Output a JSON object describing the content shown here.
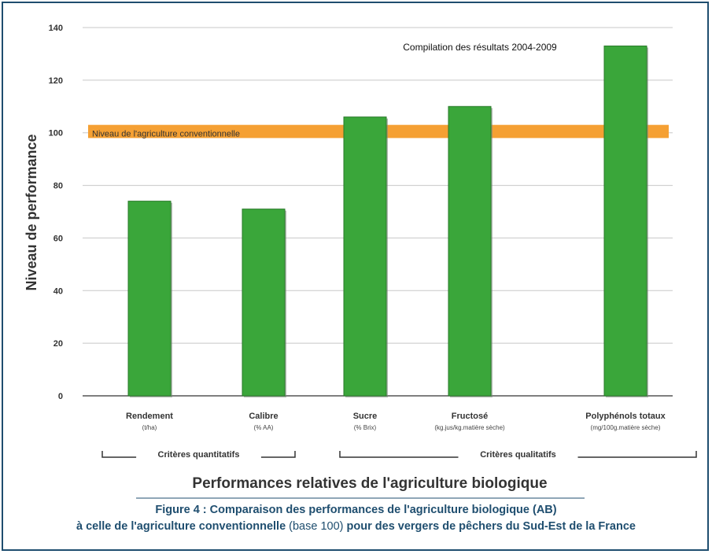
{
  "chart_data": {
    "type": "bar",
    "annotation": "Compilation des résultats 2004-2009",
    "ylabel": "Niveau de performance",
    "xlabel": "Performances relatives de l'agriculture biologique",
    "ylim": [
      0,
      140
    ],
    "yticks": [
      0,
      20,
      40,
      60,
      80,
      100,
      120,
      140
    ],
    "grid": true,
    "bar_color": "#3aa63a",
    "reference_band": {
      "label": "Niveau de l'agriculture conventionnelle",
      "value": 100,
      "range": [
        98,
        103
      ],
      "color": "#f5a033"
    },
    "categories": [
      {
        "name": "Rendement",
        "unit": "(t/ha)"
      },
      {
        "name": "Calibre",
        "unit": "(% AA)"
      },
      {
        "name": "Sucre",
        "unit": "(% Brix)"
      },
      {
        "name": "Fructosé",
        "unit": "(kg.jus/kg.matière sèche)"
      },
      {
        "name": "Polyphénols totaux",
        "unit": "(mg/100g.matière sèche)"
      }
    ],
    "values": [
      74,
      71,
      106,
      110,
      133
    ],
    "groups": [
      {
        "label": "Critères quantitatifs",
        "from": 0,
        "to": 1
      },
      {
        "label": "Critères qualitatifs",
        "from": 2,
        "to": 4
      }
    ]
  },
  "caption": {
    "line1": "Figure 4 : Comparaison des performances de l'agriculture biologique (AB)",
    "line2_bold_a": "à celle de l'agriculture conventionnelle",
    "line2_normal": " (base 100)",
    "line2_bold_b": " pour des vergers de pêchers du Sud-Est de la France"
  }
}
